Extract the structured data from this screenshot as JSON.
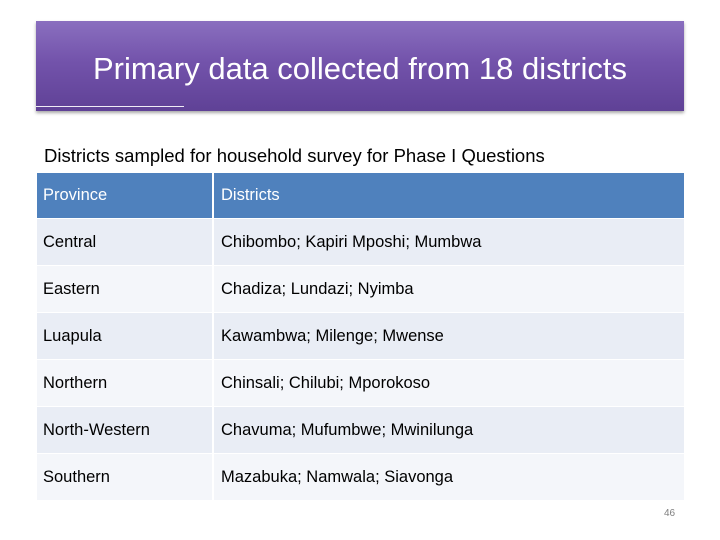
{
  "title": "Primary data collected from 18 districts",
  "subtitle": "Districts sampled for household survey for Phase I Questions",
  "table": {
    "headers": [
      "Province",
      "Districts"
    ],
    "rows": [
      {
        "province": "Central",
        "districts": "Chibombo; Kapiri Mposhi; Mumbwa"
      },
      {
        "province": "Eastern",
        "districts": "Chadiza; Lundazi; Nyimba"
      },
      {
        "province": "Luapula",
        "districts": "Kawambwa; Milenge; Mwense"
      },
      {
        "province": "Northern",
        "districts": "Chinsali; Chilubi; Mporokoso"
      },
      {
        "province": "North-Western",
        "districts": "Chavuma; Mufumbwe; Mwinilunga"
      },
      {
        "province": "Southern",
        "districts": "Mazabuka; Namwala; Siavonga"
      }
    ]
  },
  "page_number": "46",
  "colors": {
    "title_banner": "#7353ab",
    "header_row": "#4f81bd",
    "body_row": "#e9edf5"
  }
}
